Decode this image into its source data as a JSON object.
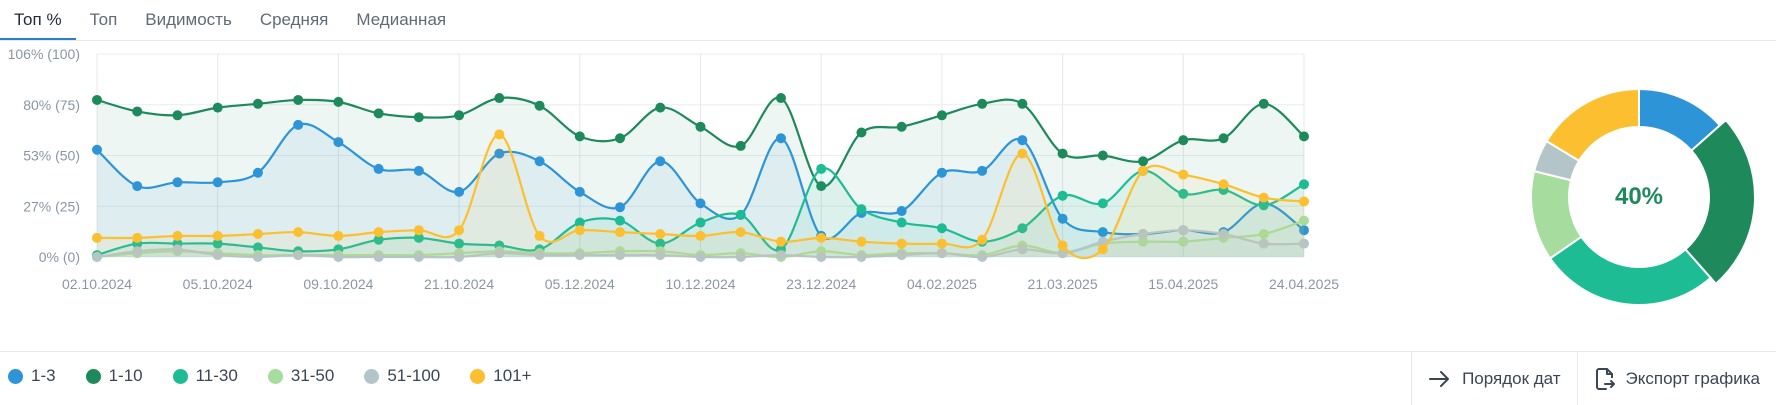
{
  "tabs": [
    {
      "label": "Топ %",
      "active": true
    },
    {
      "label": "Топ",
      "active": false
    },
    {
      "label": "Видимость",
      "active": false
    },
    {
      "label": "Средняя",
      "active": false
    },
    {
      "label": "Медианная",
      "active": false
    }
  ],
  "chart_data": {
    "type": "line",
    "y_tick_labels": [
      "0% (0)",
      "27% (25)",
      "53% (50)",
      "80% (75)",
      "106% (100)"
    ],
    "ylim": [
      0,
      106
    ],
    "x_tick_labels": [
      "02.10.2024",
      "05.10.2024",
      "09.10.2024",
      "21.10.2024",
      "05.12.2024",
      "10.12.2024",
      "23.12.2024",
      "04.02.2025",
      "21.03.2025",
      "15.04.2025",
      "24.04.2025"
    ],
    "grid": true,
    "point_count": 31,
    "series": [
      {
        "name": "1-10",
        "color": "#1e8a5c",
        "values": [
          82,
          76,
          74,
          78,
          80,
          82,
          81,
          75,
          73,
          74,
          83,
          79,
          63,
          62,
          78,
          68,
          58,
          83,
          37,
          65,
          68,
          74,
          80,
          80,
          54,
          53,
          50,
          61,
          62,
          80,
          63
        ]
      },
      {
        "name": "1-3",
        "color": "#2d94d8",
        "values": [
          56,
          37,
          39,
          39,
          44,
          69,
          60,
          46,
          45,
          34,
          54,
          50,
          34,
          26,
          50,
          28,
          22,
          62,
          11,
          23,
          24,
          44,
          45,
          61,
          20,
          13,
          12,
          14,
          13,
          28,
          14
        ]
      },
      {
        "name": "11-30",
        "color": "#1ebc95",
        "values": [
          1,
          7,
          7,
          7,
          5,
          3,
          4,
          9,
          10,
          7,
          6,
          4,
          18,
          19,
          7,
          18,
          22,
          4,
          46,
          25,
          18,
          15,
          8,
          15,
          32,
          28,
          45,
          33,
          35,
          27,
          38
        ]
      },
      {
        "name": "31-50",
        "color": "#a6dc9e",
        "values": [
          0,
          2,
          3,
          2,
          1,
          1,
          1,
          1,
          1,
          2,
          3,
          2,
          2,
          3,
          3,
          1,
          2,
          0,
          3,
          1,
          2,
          2,
          1,
          6,
          2,
          7,
          8,
          8,
          10,
          12,
          19
        ]
      },
      {
        "name": "51-100",
        "color": "#b4c5c9",
        "values": [
          0,
          3,
          4,
          1,
          0,
          1,
          0,
          0,
          0,
          0,
          2,
          1,
          1,
          1,
          1,
          0,
          0,
          1,
          0,
          0,
          1,
          2,
          0,
          4,
          2,
          8,
          12,
          14,
          12,
          7,
          7
        ]
      },
      {
        "name": "101+",
        "color": "#fbbf2f",
        "values": [
          10,
          10,
          11,
          11,
          12,
          13,
          11,
          13,
          14,
          14,
          64,
          11,
          14,
          13,
          12,
          11,
          13,
          8,
          10,
          8,
          7,
          7,
          9,
          54,
          6,
          4,
          45,
          43,
          38,
          31,
          29
        ]
      }
    ]
  },
  "donut": {
    "center_label": "40%",
    "segments": [
      {
        "name": "1-3",
        "color": "#2d94d8",
        "value": 14
      },
      {
        "name": "1-10",
        "color": "#1e8a5c",
        "value": 26
      },
      {
        "name": "11-30",
        "color": "#1ebc95",
        "value": 28
      },
      {
        "name": "31-50",
        "color": "#a6dc9e",
        "value": 14
      },
      {
        "name": "51-100",
        "color": "#b4c5c9",
        "value": 5
      },
      {
        "name": "101+",
        "color": "#fbbf2f",
        "value": 17
      }
    ]
  },
  "legend": [
    {
      "label": "1-3",
      "color": "#2d94d8"
    },
    {
      "label": "1-10",
      "color": "#1e8a5c"
    },
    {
      "label": "11-30",
      "color": "#1ebc95"
    },
    {
      "label": "31-50",
      "color": "#a6dc9e"
    },
    {
      "label": "51-100",
      "color": "#b4c5c9"
    },
    {
      "label": "101+",
      "color": "#fbbf2f"
    }
  ],
  "actions": {
    "date_order_label": "Порядок дат",
    "export_label": "Экспорт графика",
    "date_order_icon": "arrow-right-icon",
    "export_icon": "file-export-icon"
  }
}
